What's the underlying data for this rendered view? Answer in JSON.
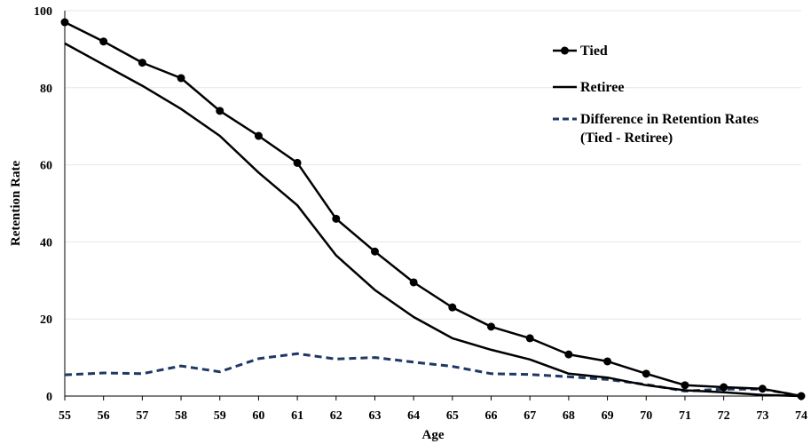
{
  "chart_data": {
    "type": "line",
    "xlabel": "Age",
    "ylabel": "Retention Rate",
    "xlim": [
      55,
      74
    ],
    "ylim": [
      0,
      100
    ],
    "y_ticks": [
      0,
      20,
      40,
      60,
      80,
      100
    ],
    "grid": "horizontal",
    "legend_position": "top-right",
    "x": [
      55,
      56,
      57,
      58,
      59,
      60,
      61,
      62,
      63,
      64,
      65,
      66,
      67,
      68,
      69,
      70,
      71,
      72,
      73,
      74
    ],
    "series": [
      {
        "name": "Tied",
        "style": "solid-markers",
        "color": "#000000",
        "values": [
          97,
          92,
          86.5,
          82.5,
          74,
          67.5,
          60.5,
          46,
          37.5,
          29.5,
          23,
          18,
          15,
          10.8,
          9,
          5.8,
          2.8,
          2.3,
          1.9,
          0
        ]
      },
      {
        "name": "Retiree",
        "style": "solid",
        "color": "#000000",
        "values": [
          91.5,
          86,
          80.5,
          74.5,
          67.5,
          58,
          49.5,
          36.5,
          27.5,
          20.5,
          15,
          12,
          9.5,
          5.8,
          4.8,
          2.8,
          1.5,
          1,
          0.3,
          0
        ]
      },
      {
        "name": "Difference in Retention Rates\n(Tied - Retiree)",
        "label_lines": [
          "Difference in Retention Rates",
          "(Tied - Retiree)"
        ],
        "style": "dashed",
        "color": "#1f3864",
        "values": [
          5.5,
          6,
          5.8,
          7.8,
          6.3,
          9.7,
          11,
          9.6,
          10,
          8.8,
          7.7,
          5.8,
          5.6,
          5,
          4.3,
          3,
          1.3,
          1.8,
          1.8,
          0
        ]
      }
    ]
  }
}
